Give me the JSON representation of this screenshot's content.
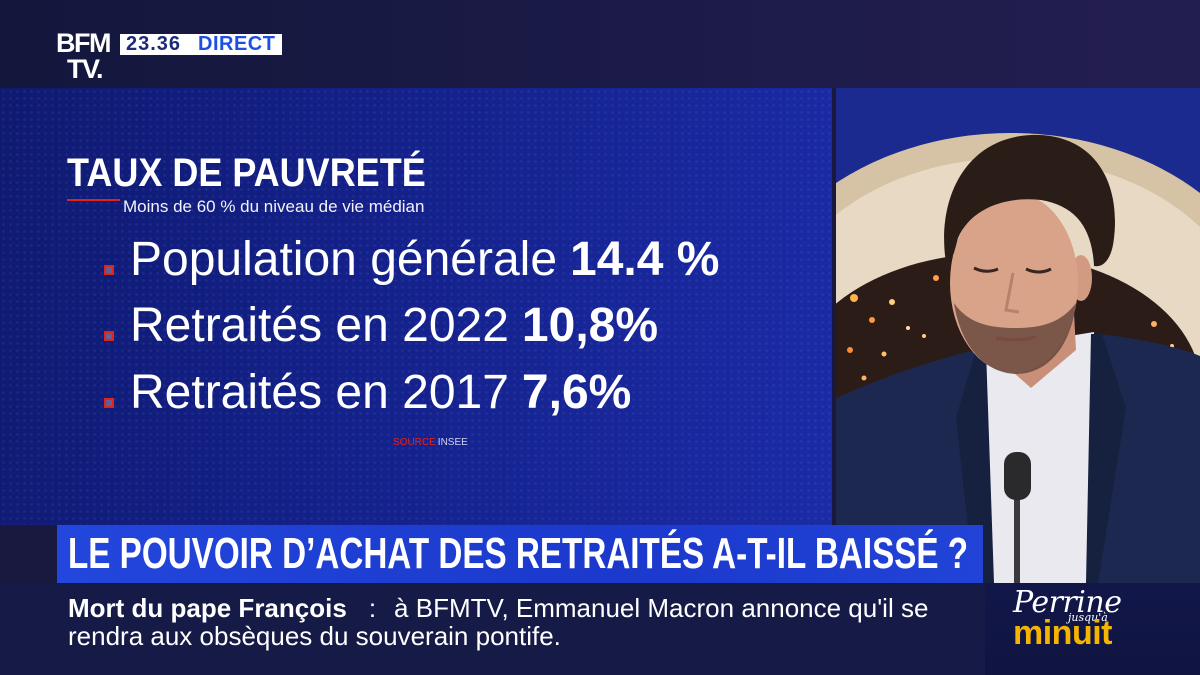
{
  "channel": {
    "logo_line1": "BFM",
    "logo_line2": "TV.",
    "time": "23.36",
    "live_label": "DIRECT"
  },
  "graphic": {
    "title": "TAUX DE PAUVRETÉ",
    "subtitle": "Moins de 60 % du niveau de vie médian",
    "items": [
      {
        "label": "Population générale",
        "value": "14.4 %"
      },
      {
        "label": "Retraités en 2022",
        "value": "10,8%"
      },
      {
        "label": "Retraités en 2017",
        "value": "7,6%"
      }
    ],
    "source_label": "SOURCE",
    "source_value": "INSEE"
  },
  "headline": "LE POUVOIR D’ACHAT DES RETRAITÉS A-T-IL BAISSÉ ?",
  "ticker": {
    "topic": "Mort du pape François",
    "separator": ":",
    "text_line1": "à BFMTV, Emmanuel Macron annonce qu'il se",
    "text_line2": "rendra aux obsèques du souverain pontife."
  },
  "show": {
    "name": "Perrine",
    "connector": "jusqu'à",
    "time_word": "minuit"
  },
  "colors": {
    "accent_red": "#e2231a",
    "headline_blue": "#1f3fd6",
    "live_blue": "#1d4fe0",
    "gold": "#f5b400",
    "panel_blue": "#15238f",
    "ticker_navy": "#151a47",
    "top_navy": "#19193f"
  }
}
